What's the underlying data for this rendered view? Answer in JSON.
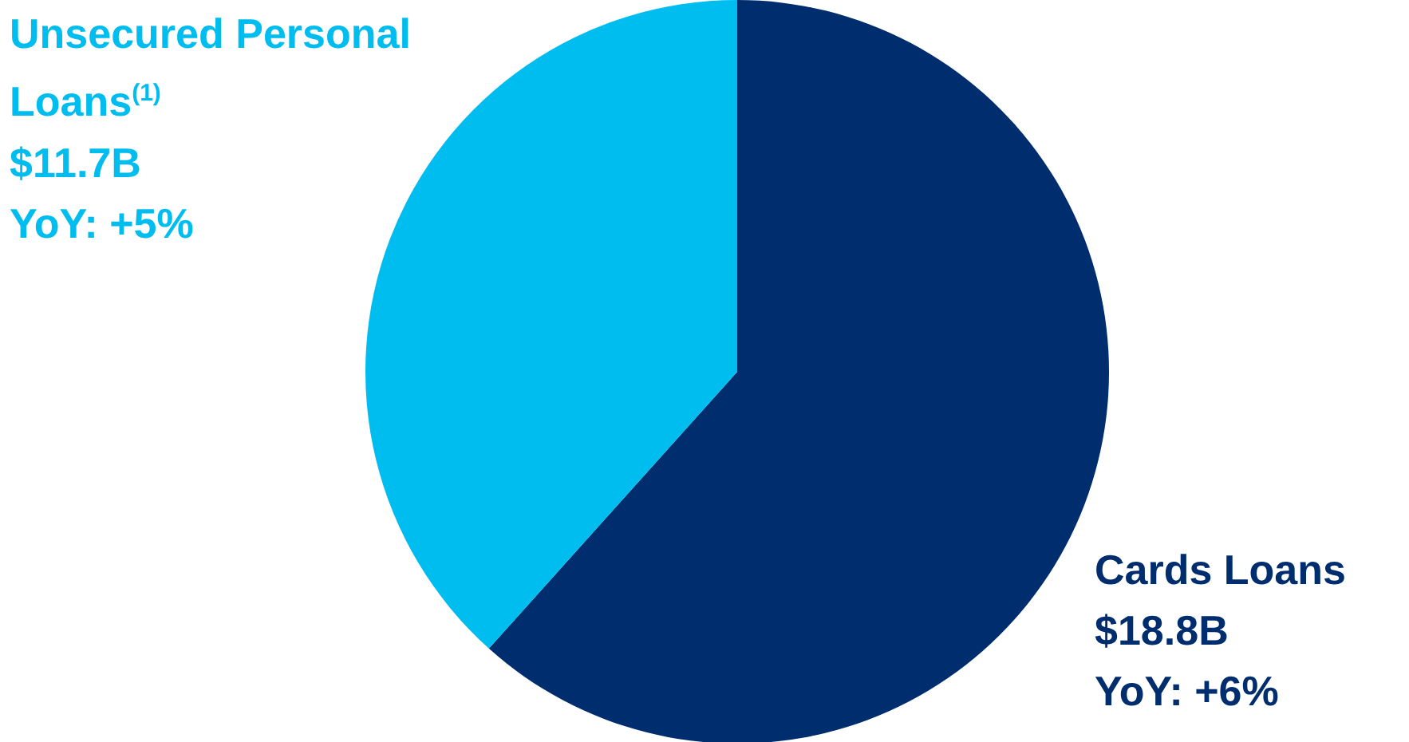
{
  "chart_data": {
    "type": "pie",
    "categories": [
      "Cards Loans",
      "Unsecured Personal Loans$^{(1)}$"
    ],
    "values": [
      18.8,
      11.7
    ],
    "colors": [
      "#002d6e",
      "#00bdf0"
    ],
    "value_labels": [
      "$18.8B",
      "$11.7B"
    ],
    "annotations": [
      "YoY: +6%",
      "YoY: +5%"
    ],
    "legend": false
  }
}
